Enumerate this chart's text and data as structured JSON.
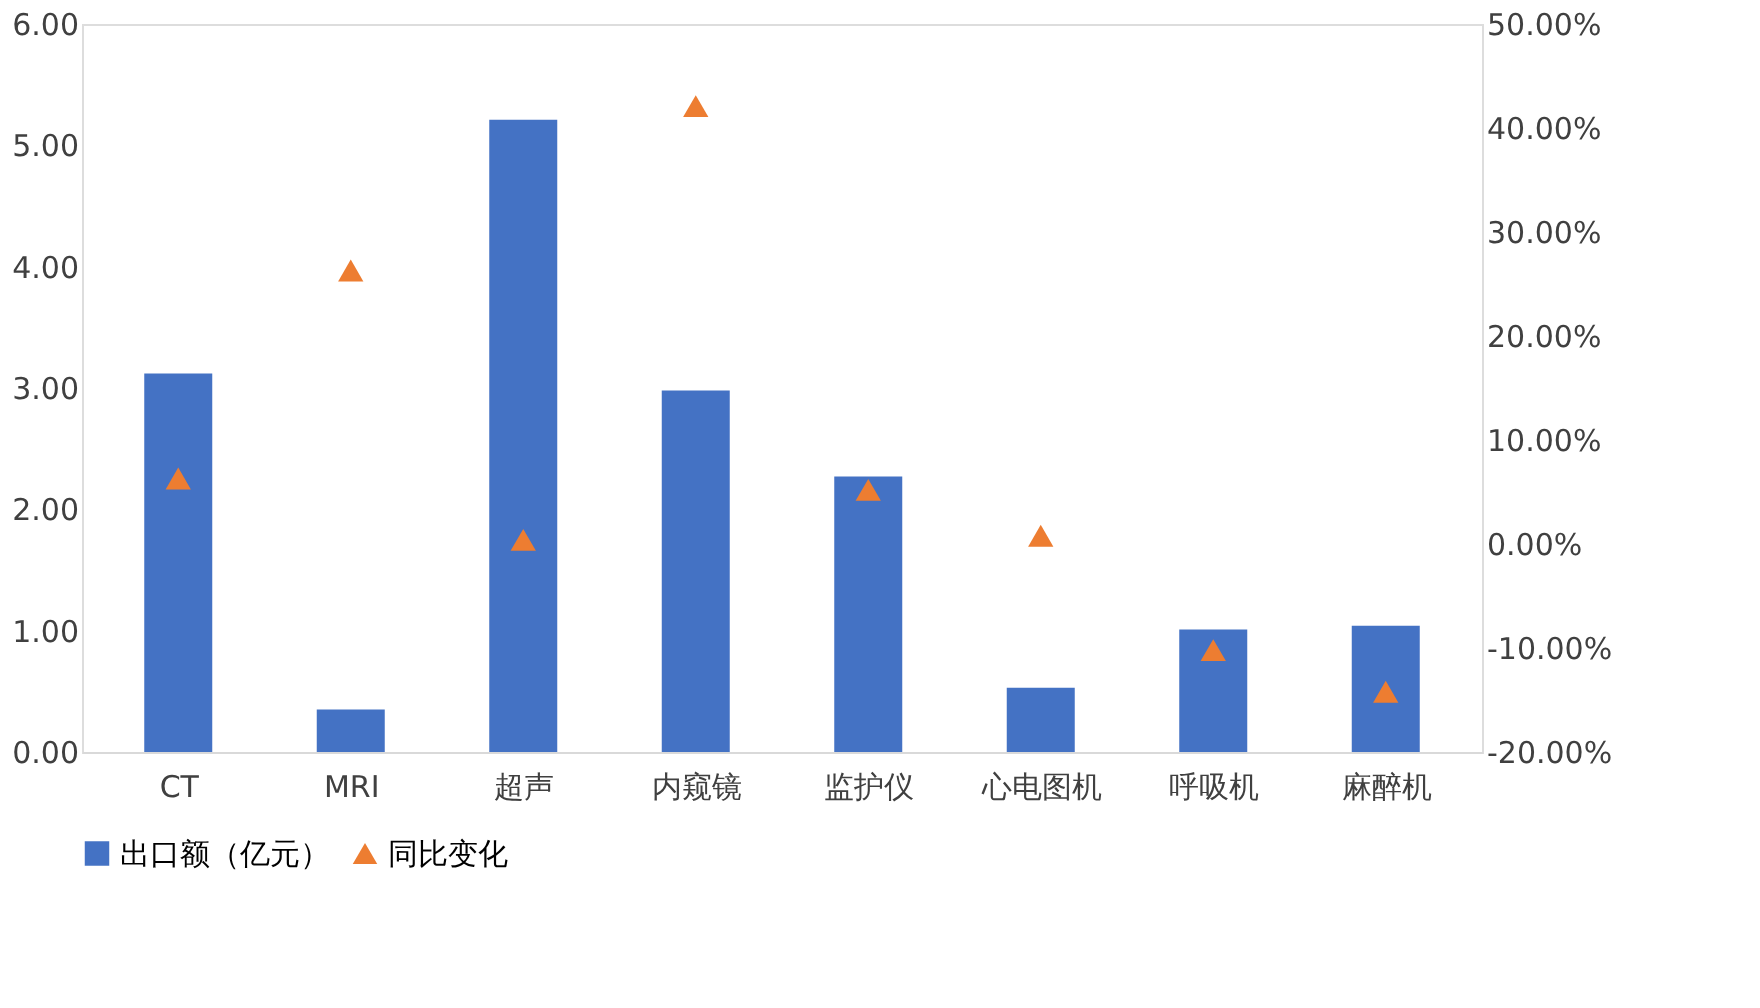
{
  "chart_data": {
    "type": "bar",
    "categories": [
      "CT",
      "MRI",
      "超声",
      "内窥镜",
      "监护仪",
      "心电图机",
      "呼吸机",
      "麻醉机"
    ],
    "series": [
      {
        "name": "出口额（亿元）",
        "color": "#4472c4",
        "values": [
          3.12,
          0.35,
          5.21,
          2.98,
          2.27,
          0.53,
          1.01,
          1.04
        ]
      },
      {
        "name": "同比变化",
        "type": "scatter",
        "axis": "y2",
        "color": "#ed7d31",
        "marker": "triangle",
        "values": [
          6.3,
          26.3,
          0.4,
          42.1,
          5.2,
          0.8,
          -10.2,
          -14.2
        ]
      }
    ],
    "ylim": [
      0,
      6
    ],
    "yticks": [
      {
        "value": 0,
        "label": "0.00"
      },
      {
        "value": 1,
        "label": "1.00"
      },
      {
        "value": 2,
        "label": "2.00"
      },
      {
        "value": 3,
        "label": "3.00"
      },
      {
        "value": 4,
        "label": "4.00"
      },
      {
        "value": 5,
        "label": "5.00"
      },
      {
        "value": 6,
        "label": "6.00"
      }
    ],
    "y2lim": [
      -20,
      50
    ],
    "y2ticks": [
      {
        "value": -20,
        "label": "-20.00%"
      },
      {
        "value": -10,
        "label": "-10.00%"
      },
      {
        "value": 0,
        "label": "0.00%"
      },
      {
        "value": 10,
        "label": "10.00%"
      },
      {
        "value": 20,
        "label": "20.00%"
      },
      {
        "value": 30,
        "label": "30.00%"
      },
      {
        "value": 40,
        "label": "40.00%"
      },
      {
        "value": 50,
        "label": "50.00%"
      }
    ],
    "grid": false,
    "legend": "bottom"
  }
}
